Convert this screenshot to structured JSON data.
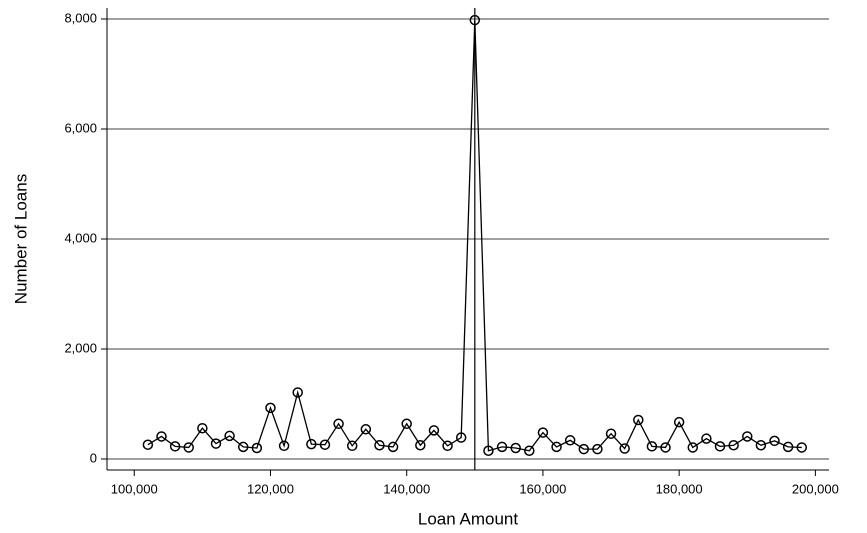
{
  "chart_data": {
    "type": "line",
    "xlabel": "Loan Amount",
    "ylabel": "Number of Loans",
    "x": [
      102000,
      104000,
      106000,
      108000,
      110000,
      112000,
      114000,
      116000,
      118000,
      120000,
      122000,
      124000,
      126000,
      128000,
      130000,
      132000,
      134000,
      136000,
      138000,
      140000,
      142000,
      144000,
      146000,
      148000,
      150000,
      152000,
      154000,
      156000,
      158000,
      160000,
      162000,
      164000,
      166000,
      168000,
      170000,
      172000,
      174000,
      176000,
      178000,
      180000,
      182000,
      184000,
      186000,
      188000,
      190000,
      192000,
      194000,
      196000,
      198000
    ],
    "series": [
      {
        "color": "#000000",
        "values": [
          260,
          410,
          230,
          210,
          560,
          280,
          420,
          220,
          200,
          930,
          240,
          1210,
          270,
          260,
          640,
          240,
          540,
          250,
          220,
          640,
          250,
          520,
          240,
          390,
          7980,
          150,
          220,
          200,
          150,
          480,
          220,
          340,
          180,
          180,
          460,
          190,
          710,
          230,
          210,
          670,
          210,
          370,
          230,
          250,
          410,
          250,
          330,
          220,
          210
        ]
      }
    ],
    "xlim": [
      96000,
      202000
    ],
    "ylim": [
      -200,
      8200
    ],
    "xticks": [
      {
        "value": 100000,
        "label": "100,000"
      },
      {
        "value": 120000,
        "label": "120,000"
      },
      {
        "value": 140000,
        "label": "140,000"
      },
      {
        "value": 160000,
        "label": "160,000"
      },
      {
        "value": 180000,
        "label": "180,000"
      },
      {
        "value": 200000,
        "label": "200,000"
      }
    ],
    "yticks": [
      0,
      {
        "value": 2000,
        "label": "2,000"
      },
      {
        "value": 4000,
        "label": "4,000"
      },
      {
        "value": 6000,
        "label": "6,000"
      },
      {
        "value": 8000,
        "label": "8,000"
      }
    ],
    "grid": true,
    "vline": 150000
  }
}
